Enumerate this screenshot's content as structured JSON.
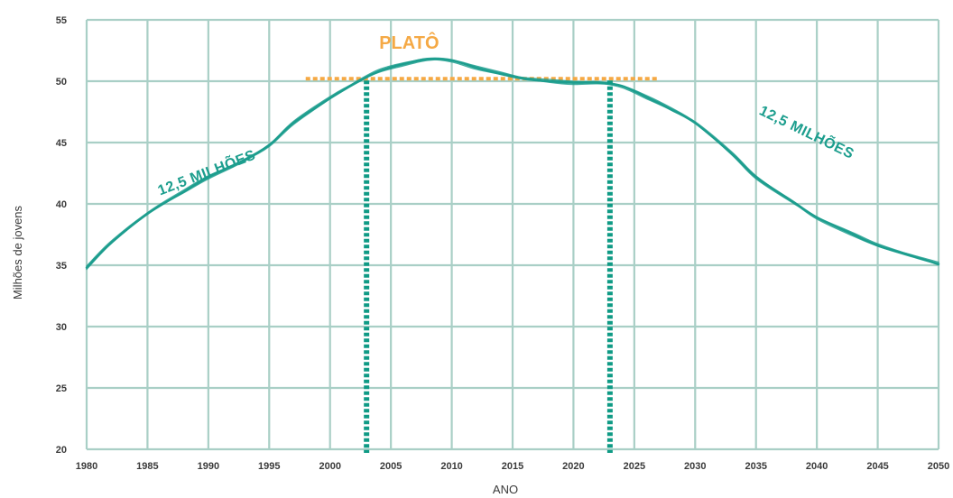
{
  "chart_data": {
    "type": "line",
    "title": "",
    "xlabel": "ANO",
    "ylabel": "Milhões de jovens",
    "xlim": [
      1980,
      2050
    ],
    "ylim": [
      20,
      55
    ],
    "x_ticks": [
      1980,
      1985,
      1990,
      1995,
      2000,
      2005,
      2010,
      2015,
      2020,
      2025,
      2030,
      2035,
      2040,
      2045,
      2050
    ],
    "y_ticks": [
      20,
      25,
      30,
      35,
      40,
      45,
      50,
      55
    ],
    "grid": true,
    "series": [
      {
        "x": [
          1980,
          1982,
          1985,
          1988,
          1990,
          1993,
          1995,
          1997,
          2000,
          2002,
          2004,
          2006,
          2008,
          2010,
          2012,
          2014,
          2016,
          2018,
          2020,
          2022,
          2024,
          2026,
          2028,
          2030,
          2033,
          2035,
          2038,
          2040,
          2043,
          2045,
          2048,
          2050
        ],
        "values": [
          34.8,
          36.8,
          39.2,
          41.0,
          42.2,
          43.6,
          44.8,
          46.6,
          48.6,
          49.8,
          50.8,
          51.4,
          51.8,
          51.7,
          51.1,
          50.6,
          50.2,
          50.0,
          49.9,
          49.9,
          49.6,
          48.7,
          47.7,
          46.6,
          44.1,
          42.2,
          40.2,
          38.9,
          37.5,
          36.6,
          35.7,
          35.1
        ]
      }
    ],
    "plateau": {
      "label": "PLATÔ",
      "y": 50.2,
      "x_start": 1998,
      "x_end": 2027,
      "marker_x": [
        2003,
        2023
      ],
      "color": "#f5a945"
    },
    "annotations": [
      {
        "text": "12,5 MILHÕES",
        "x": 1990,
        "y": 42.2
      },
      {
        "text": "12,5 MILHÕES",
        "x": 2039,
        "y": 45.5
      }
    ],
    "colors": {
      "line": "#1d9e8e",
      "grid": "#a9cfc6",
      "plateau": "#f5a945",
      "markers": "#0f9a85"
    }
  }
}
